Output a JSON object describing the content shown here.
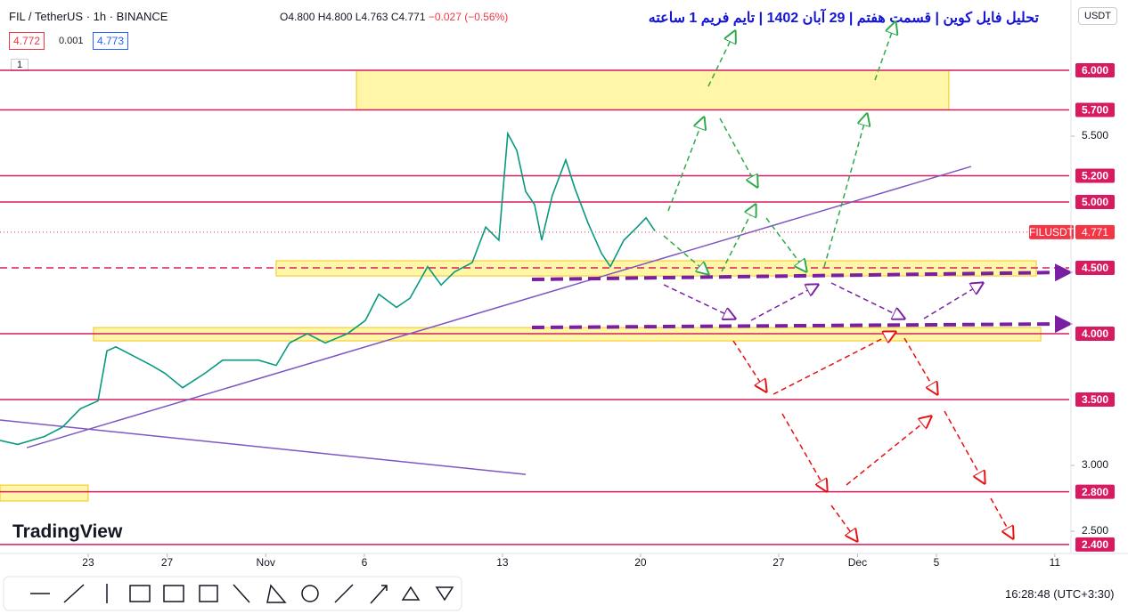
{
  "header": {
    "symbol": "FIL / TetherUS · 1h · BINANCE",
    "open": "O4.800",
    "high": "H4.800",
    "low": "L4.763",
    "close": "C4.771",
    "change": "−0.027 (−0.56%)",
    "bid": "4.772",
    "spread": "0.001",
    "ask": "4.773",
    "indicators": "1",
    "currency": "USDT"
  },
  "footer": {
    "brand": "TradingView",
    "time": "16:28:48",
    "timezone": "(UTC+3:30)"
  },
  "chart_data": {
    "type": "line",
    "title": "تحلیل فایل کوین | قسمت هفتم | 29 آبان 1402 | تایم فریم 1 ساعته",
    "x": [
      18.53,
      19.43,
      20.79,
      21.69,
      22.6,
      23.5,
      23.95,
      24.4,
      25.31,
      26.21,
      26.89,
      27.79,
      28.92,
      29.82,
      30.73,
      31.63,
      32.53,
      33.21,
      34.11,
      35.02,
      36.14,
      37.05,
      37.73,
      38.63,
      39.31,
      40.21,
      40.89,
      41.57,
      42.47,
      43.15,
      43.82,
      44.27,
      44.73,
      45.18,
      45.63,
      45.99,
      46.53,
      47.21,
      47.66,
      48.34,
      49.02,
      49.47,
      50.15,
      50.83,
      51.28,
      51.73
    ],
    "series": [
      {
        "name": "FILUSDT",
        "color": "#089981",
        "values": [
          3.19,
          3.16,
          3.22,
          3.29,
          3.43,
          3.49,
          3.87,
          3.9,
          3.83,
          3.76,
          3.7,
          3.59,
          3.7,
          3.8,
          3.8,
          3.8,
          3.76,
          3.93,
          4.0,
          3.93,
          4.0,
          4.1,
          4.3,
          4.2,
          4.27,
          4.51,
          4.37,
          4.47,
          4.54,
          4.81,
          4.71,
          5.52,
          5.39,
          5.08,
          4.98,
          4.71,
          5.05,
          5.32,
          5.11,
          4.84,
          4.61,
          4.51,
          4.71,
          4.81,
          4.88,
          4.78
        ]
      }
    ],
    "last_price": {
      "value": 4.771,
      "label": "4.771"
    },
    "xlim": [
      18.53,
      72.73
    ],
    "ylim": [
      2.345,
      6.534
    ],
    "xticks": [
      23,
      27,
      {
        "value": 32,
        "label": "Nov"
      },
      {
        "value": 37,
        "label": "6"
      },
      {
        "value": 44,
        "label": "13"
      },
      {
        "value": 51,
        "label": "20"
      },
      {
        "value": 58,
        "label": "27"
      },
      {
        "value": 62,
        "label": "Dec"
      },
      {
        "value": 66,
        "label": "5"
      },
      {
        "value": 72,
        "label": "11"
      }
    ],
    "yticks": [
      {
        "value": 5.5,
        "label": "5.500"
      },
      {
        "value": 3,
        "label": "3.000"
      },
      {
        "value": 2.5,
        "label": "2.500"
      }
    ],
    "levels": [
      {
        "value": 6,
        "label": "6.000"
      },
      {
        "value": 5.7,
        "label": "5.700"
      },
      {
        "value": 5.2,
        "label": "5.200"
      },
      {
        "value": 5,
        "label": "5.000"
      },
      {
        "value": 4,
        "label": "4.000"
      },
      {
        "value": 3.5,
        "label": "3.500"
      },
      {
        "value": 2.8,
        "label": "2.800"
      },
      {
        "value": 2.4,
        "label": "2.400"
      }
    ],
    "dashed_levels": [
      {
        "value": 4.5,
        "label": "4.500"
      }
    ],
    "level_color": "#d81b60",
    "zones": [
      {
        "x": [
          36.6,
          66.63
        ],
        "y": [
          5.7,
          6.0
        ]
      },
      {
        "x": [
          32.53,
          71.06
        ],
        "y": [
          4.439,
          4.554
        ]
      },
      {
        "x": [
          23.27,
          71.29
        ],
        "y": [
          3.946,
          4.047
        ]
      },
      {
        "x": [
          18.53,
          23.0
        ],
        "y": [
          2.73,
          2.851
        ]
      }
    ],
    "trendlines": [
      {
        "x": [
          19.89,
          67.76
        ],
        "y": [
          3.135,
          5.27
        ]
      },
      {
        "x": [
          18.53,
          45.18
        ],
        "y": [
          3.345,
          2.932
        ]
      }
    ]
  }
}
